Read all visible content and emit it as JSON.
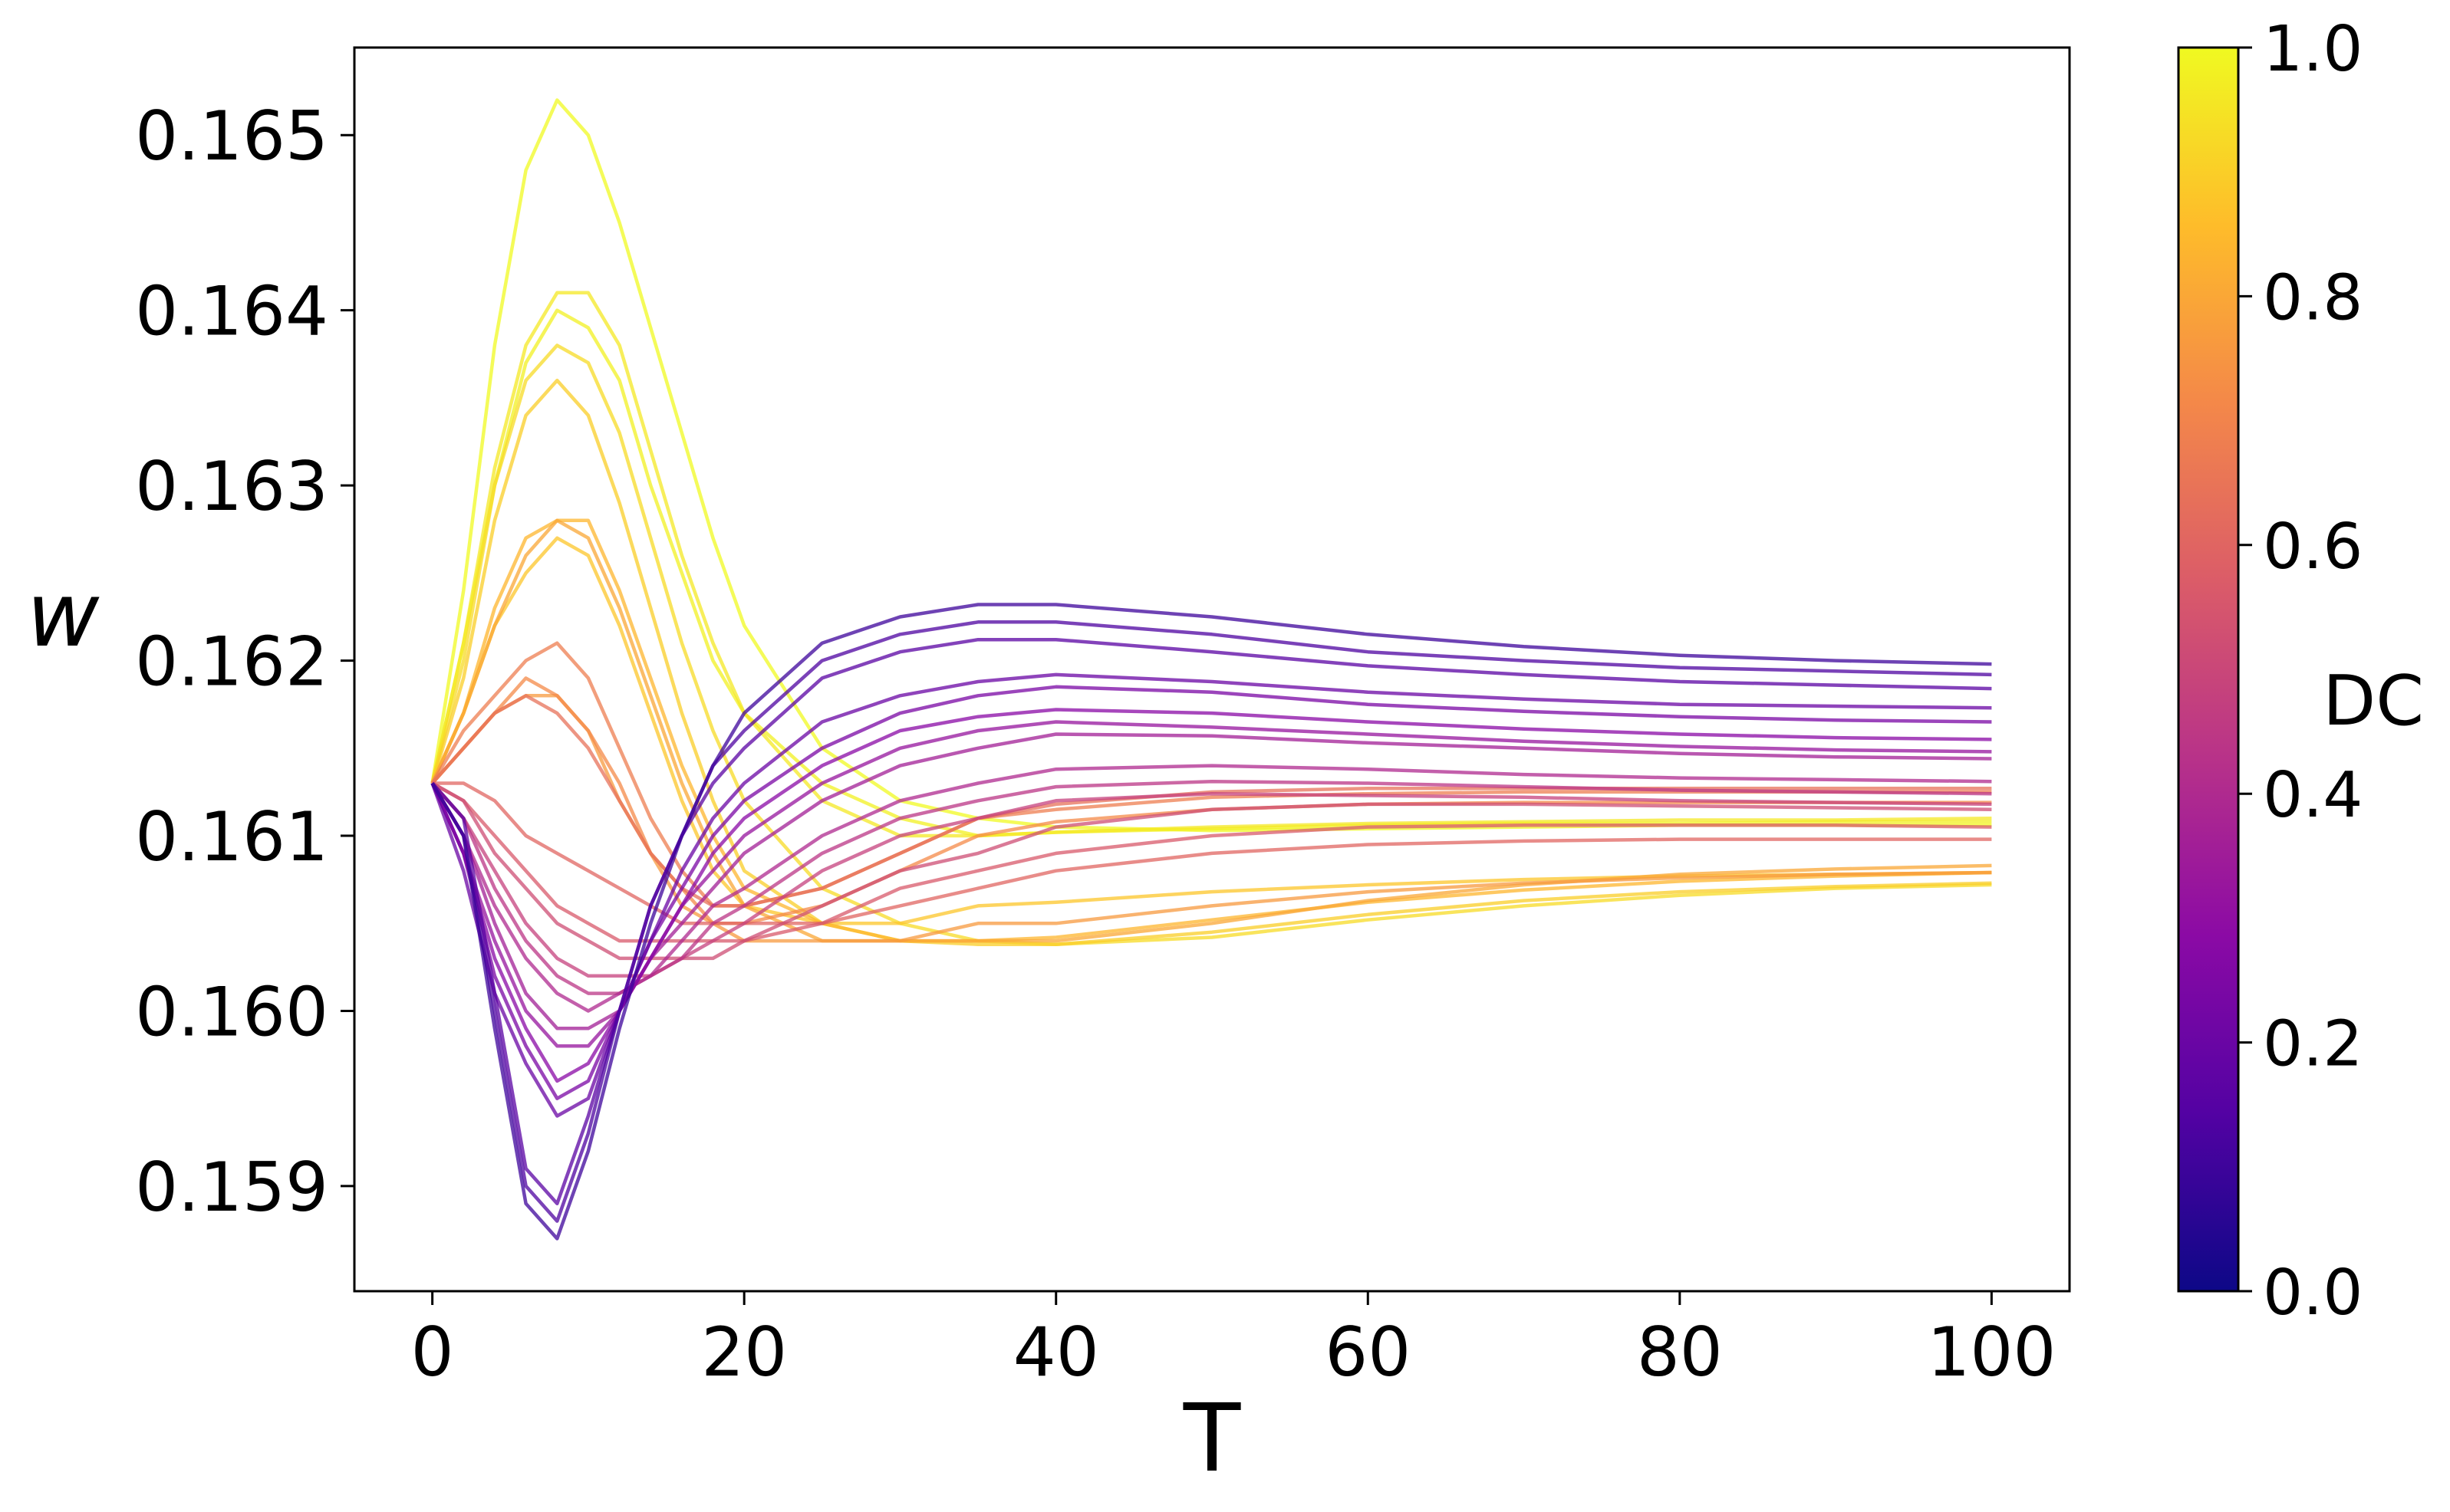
{
  "chart_data": {
    "type": "line",
    "xlabel": "T",
    "ylabel": "w",
    "xlim": [
      -5,
      105
    ],
    "ylim": [
      0.1584,
      0.1655
    ],
    "xticks": [
      0,
      20,
      40,
      60,
      80,
      100
    ],
    "yticks": [
      0.159,
      0.16,
      0.161,
      0.162,
      0.163,
      0.164,
      0.165
    ],
    "xtick_labels": [
      "0",
      "20",
      "40",
      "60",
      "80",
      "100"
    ],
    "ytick_labels": [
      "0.159",
      "0.160",
      "0.161",
      "0.162",
      "0.163",
      "0.164",
      "0.165"
    ],
    "grid": false,
    "colorbar": {
      "label": "DC",
      "colormap": "plasma",
      "range": [
        0.0,
        1.0
      ],
      "ticks": [
        0.0,
        0.2,
        0.4,
        0.6,
        0.8,
        1.0
      ],
      "tick_labels": [
        "0.0",
        "0.2",
        "0.4",
        "0.6",
        "0.8",
        "1.0"
      ],
      "stops": [
        "#0d0887",
        "#5302a3",
        "#8b0aa5",
        "#b83289",
        "#db5c68",
        "#f48849",
        "#febc2a",
        "#f0f921"
      ]
    },
    "x": [
      0,
      2,
      4,
      6,
      8,
      10,
      12,
      14,
      16,
      18,
      20,
      25,
      30,
      35,
      40,
      50,
      60,
      70,
      80,
      90,
      100
    ],
    "series": [
      {
        "dc": 0.1,
        "values": [
          0.1613,
          0.161,
          0.1599,
          0.1589,
          0.1587,
          0.1592,
          0.1599,
          0.1605,
          0.161,
          0.1614,
          0.1617,
          0.1621,
          0.16225,
          0.16232,
          0.16232,
          0.16225,
          0.16215,
          0.16208,
          0.16203,
          0.162,
          0.16198
        ]
      },
      {
        "dc": 0.13,
        "values": [
          0.1613,
          0.161,
          0.16,
          0.159,
          0.1588,
          0.1593,
          0.16,
          0.1606,
          0.161,
          0.1614,
          0.1616,
          0.162,
          0.16215,
          0.16222,
          0.16222,
          0.16215,
          0.16205,
          0.162,
          0.16196,
          0.16194,
          0.16192
        ]
      },
      {
        "dc": 0.16,
        "values": [
          0.1613,
          0.1611,
          0.1601,
          0.1591,
          0.1589,
          0.1594,
          0.16,
          0.1606,
          0.161,
          0.1613,
          0.1615,
          0.1619,
          0.16205,
          0.16212,
          0.16212,
          0.16205,
          0.16197,
          0.16192,
          0.16188,
          0.16186,
          0.16184
        ]
      },
      {
        "dc": 0.2,
        "values": [
          0.1613,
          0.1608,
          0.1601,
          0.1597,
          0.1594,
          0.1595,
          0.16,
          0.1604,
          0.1608,
          0.1611,
          0.1613,
          0.16165,
          0.1618,
          0.16188,
          0.16192,
          0.16188,
          0.16182,
          0.16178,
          0.16175,
          0.16174,
          0.16173
        ]
      },
      {
        "dc": 0.24,
        "values": [
          0.1613,
          0.1609,
          0.1602,
          0.1598,
          0.1595,
          0.1596,
          0.16,
          0.1604,
          0.1607,
          0.161,
          0.1612,
          0.1615,
          0.1617,
          0.1618,
          0.16185,
          0.16182,
          0.16175,
          0.16171,
          0.16168,
          0.16166,
          0.16165
        ]
      },
      {
        "dc": 0.28,
        "values": [
          0.1613,
          0.1609,
          0.1603,
          0.1599,
          0.1596,
          0.1597,
          0.16,
          0.1603,
          0.1606,
          0.1609,
          0.1611,
          0.1614,
          0.1616,
          0.16168,
          0.16172,
          0.1617,
          0.16165,
          0.16161,
          0.16158,
          0.16156,
          0.16155
        ]
      },
      {
        "dc": 0.32,
        "values": [
          0.1613,
          0.1609,
          0.1604,
          0.16,
          0.1598,
          0.1598,
          0.16,
          0.1603,
          0.1606,
          0.1608,
          0.161,
          0.1613,
          0.1615,
          0.1616,
          0.16165,
          0.16162,
          0.16158,
          0.16154,
          0.16151,
          0.16149,
          0.16148
        ]
      },
      {
        "dc": 0.36,
        "values": [
          0.1613,
          0.161,
          0.1605,
          0.1601,
          0.1599,
          0.1599,
          0.16,
          0.1603,
          0.1605,
          0.1607,
          0.1609,
          0.1612,
          0.1614,
          0.1615,
          0.16158,
          0.16157,
          0.16153,
          0.1615,
          0.16147,
          0.16145,
          0.16144
        ]
      },
      {
        "dc": 0.4,
        "values": [
          0.1613,
          0.161,
          0.1606,
          0.1603,
          0.1601,
          0.16,
          0.1601,
          0.1602,
          0.1604,
          0.1606,
          0.1607,
          0.161,
          0.1612,
          0.1613,
          0.16138,
          0.1614,
          0.16138,
          0.16135,
          0.16133,
          0.16132,
          0.16131
        ]
      },
      {
        "dc": 0.44,
        "values": [
          0.1613,
          0.1611,
          0.1607,
          0.1604,
          0.1602,
          0.1601,
          0.1601,
          0.1602,
          0.1603,
          0.1605,
          0.1606,
          0.1609,
          0.1611,
          0.1612,
          0.16128,
          0.16131,
          0.1613,
          0.16128,
          0.16126,
          0.16125,
          0.16124
        ]
      },
      {
        "dc": 0.48,
        "values": [
          0.1613,
          0.1611,
          0.1608,
          0.1605,
          0.1603,
          0.1602,
          0.1602,
          0.1602,
          0.1603,
          0.1604,
          0.1605,
          0.1608,
          0.161,
          0.1611,
          0.1612,
          0.16124,
          0.16123,
          0.16122,
          0.1612,
          0.16119,
          0.16118
        ]
      },
      {
        "dc": 0.52,
        "values": [
          0.1613,
          0.1612,
          0.1609,
          0.1607,
          0.1605,
          0.1604,
          0.1603,
          0.1603,
          0.1603,
          0.1603,
          0.1604,
          0.1606,
          0.1608,
          0.1609,
          0.16105,
          0.16115,
          0.16118,
          0.16118,
          0.16117,
          0.16116,
          0.16115
        ]
      },
      {
        "dc": 0.56,
        "values": [
          0.1613,
          0.1612,
          0.161,
          0.1608,
          0.1606,
          0.1605,
          0.1604,
          0.1604,
          0.1604,
          0.1604,
          0.1604,
          0.1605,
          0.1607,
          0.1608,
          0.1609,
          0.161,
          0.16105,
          0.16106,
          0.16106,
          0.16106,
          0.16105
        ]
      },
      {
        "dc": 0.6,
        "values": [
          0.1613,
          0.1613,
          0.1612,
          0.161,
          0.1609,
          0.1608,
          0.1607,
          0.1606,
          0.1605,
          0.1605,
          0.1605,
          0.1605,
          0.1606,
          0.1607,
          0.1608,
          0.1609,
          0.16095,
          0.16097,
          0.16098,
          0.16098,
          0.16098
        ]
      },
      {
        "dc": 0.64,
        "values": [
          0.1613,
          0.1615,
          0.1617,
          0.1618,
          0.1617,
          0.1615,
          0.1612,
          0.1609,
          0.1607,
          0.1606,
          0.1606,
          0.1607,
          0.1609,
          0.1611,
          0.16118,
          0.16125,
          0.16127,
          0.16127,
          0.16127,
          0.16127,
          0.16127
        ]
      },
      {
        "dc": 0.68,
        "values": [
          0.1613,
          0.1616,
          0.1618,
          0.162,
          0.1621,
          0.1619,
          0.1615,
          0.1611,
          0.1608,
          0.1606,
          0.1606,
          0.1607,
          0.1609,
          0.1611,
          0.16115,
          0.16122,
          0.16124,
          0.16125,
          0.16125,
          0.16125,
          0.16125
        ]
      },
      {
        "dc": 0.72,
        "values": [
          0.1613,
          0.1615,
          0.1617,
          0.1619,
          0.1618,
          0.1616,
          0.1613,
          0.1609,
          0.1607,
          0.1605,
          0.1605,
          0.1606,
          0.1608,
          0.161,
          0.16108,
          0.16115,
          0.16118,
          0.16119,
          0.16119,
          0.16119,
          0.16119
        ]
      },
      {
        "dc": 0.76,
        "values": [
          0.1613,
          0.1615,
          0.1617,
          0.1618,
          0.1618,
          0.1616,
          0.1612,
          0.1609,
          0.1606,
          0.1605,
          0.1604,
          0.1604,
          0.1604,
          0.1605,
          0.1605,
          0.1606,
          0.16068,
          0.16073,
          0.16076,
          0.16078,
          0.16079
        ]
      },
      {
        "dc": 0.8,
        "values": [
          0.1613,
          0.1617,
          0.1622,
          0.1626,
          0.1628,
          0.1627,
          0.1623,
          0.1618,
          0.1613,
          0.1609,
          0.1606,
          0.1604,
          0.1604,
          0.1604,
          0.1604,
          0.1605,
          0.16063,
          0.16072,
          0.16078,
          0.16081,
          0.16083
        ]
      },
      {
        "dc": 0.84,
        "values": [
          0.1613,
          0.1617,
          0.1623,
          0.1627,
          0.1628,
          0.1628,
          0.1624,
          0.1619,
          0.1614,
          0.161,
          0.1607,
          0.1605,
          0.1604,
          0.1604,
          0.16042,
          0.16052,
          0.16062,
          0.16069,
          0.16074,
          0.16077,
          0.16079
        ]
      },
      {
        "dc": 0.88,
        "values": [
          0.1613,
          0.1617,
          0.1622,
          0.1625,
          0.1627,
          0.1626,
          0.1622,
          0.1617,
          0.1612,
          0.1608,
          0.1606,
          0.1605,
          0.1605,
          0.1606,
          0.16062,
          0.16068,
          0.16072,
          0.16075,
          0.16077,
          0.16078,
          0.16079
        ]
      },
      {
        "dc": 0.9,
        "values": [
          0.1613,
          0.1619,
          0.1628,
          0.1634,
          0.1636,
          0.1634,
          0.1629,
          0.1623,
          0.1617,
          0.1612,
          0.1608,
          0.1605,
          0.1604,
          0.16038,
          0.16038,
          0.16045,
          0.16055,
          0.16063,
          0.16068,
          0.16071,
          0.16073
        ]
      },
      {
        "dc": 0.93,
        "values": [
          0.1613,
          0.162,
          0.163,
          0.1636,
          0.1638,
          0.1637,
          0.1633,
          0.1627,
          0.1621,
          0.1616,
          0.1612,
          0.1607,
          0.1605,
          0.1604,
          0.16038,
          0.16042,
          0.16052,
          0.1606,
          0.16066,
          0.1607,
          0.16072
        ]
      },
      {
        "dc": 0.96,
        "values": [
          0.1613,
          0.1621,
          0.1631,
          0.1638,
          0.1641,
          0.1641,
          0.1638,
          0.1632,
          0.1626,
          0.1621,
          0.1617,
          0.1612,
          0.161,
          0.161,
          0.16102,
          0.16105,
          0.16107,
          0.16108,
          0.16109,
          0.16109,
          0.1611
        ]
      },
      {
        "dc": 0.98,
        "values": [
          0.1613,
          0.1621,
          0.163,
          0.1637,
          0.164,
          0.1639,
          0.1636,
          0.163,
          0.1625,
          0.162,
          0.1617,
          0.1613,
          0.1611,
          0.161,
          0.16102,
          0.16104,
          0.16106,
          0.16107,
          0.16107,
          0.16108,
          0.16108
        ]
      },
      {
        "dc": 1.0,
        "values": [
          0.1613,
          0.1624,
          0.1638,
          0.1648,
          0.1652,
          0.165,
          0.1645,
          0.1639,
          0.1633,
          0.1627,
          0.1622,
          0.1615,
          0.1612,
          0.1611,
          0.16105,
          0.16103,
          0.16104,
          0.16105,
          0.16106,
          0.16106,
          0.16106
        ]
      }
    ]
  }
}
